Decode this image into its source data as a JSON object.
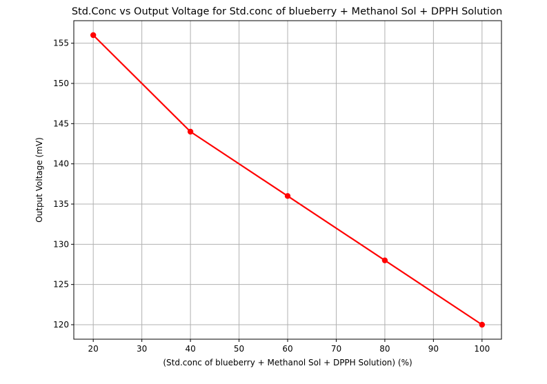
{
  "chart_data": {
    "type": "line",
    "title": "Std.Conc vs Output Voltage for Std.conc of blueberry + Methanol Sol + DPPH Solution",
    "xlabel": "(Std.conc of blueberry + Methanol Sol + DPPH Solution) (%)",
    "ylabel": "Output Voltage (mV)",
    "x": [
      20,
      40,
      60,
      80,
      100
    ],
    "series": [
      {
        "values": [
          156,
          144,
          136,
          128,
          120
        ],
        "color": "#ff0000",
        "marker": "circle"
      }
    ],
    "xlim": [
      16,
      104
    ],
    "ylim": [
      118.2,
      157.8
    ],
    "xticks": [
      20,
      30,
      40,
      50,
      60,
      70,
      80,
      90,
      100
    ],
    "yticks": [
      120,
      125,
      130,
      135,
      140,
      145,
      150,
      155
    ],
    "grid": true,
    "legend": "none",
    "colors": {
      "grid": "#b0b0b0",
      "axes": "#000000",
      "line": "#ff0000"
    }
  }
}
